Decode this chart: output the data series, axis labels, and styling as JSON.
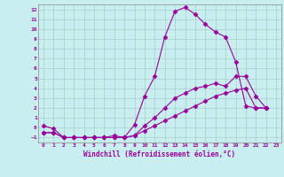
{
  "xlabel": "Windchill (Refroidissement éolien,°C)",
  "background_color": "#c8eef0",
  "line_color": "#990099",
  "grid_color": "#b0d8dc",
  "xlim": [
    -0.5,
    23.5
  ],
  "ylim": [
    -1.5,
    12.5
  ],
  "xticks": [
    0,
    1,
    2,
    3,
    4,
    5,
    6,
    7,
    8,
    9,
    10,
    11,
    12,
    13,
    14,
    15,
    16,
    17,
    18,
    19,
    20,
    21,
    22,
    23
  ],
  "yticks": [
    -1,
    0,
    1,
    2,
    3,
    4,
    5,
    6,
    7,
    8,
    9,
    10,
    11,
    12
  ],
  "line1_x": [
    0,
    1,
    2,
    3,
    4,
    5,
    6,
    7,
    8,
    9,
    10,
    11,
    12,
    13,
    14,
    15,
    16,
    17,
    18,
    19,
    20,
    21,
    22
  ],
  "line1_y": [
    0.2,
    -0.1,
    -1.0,
    -1.0,
    -1.0,
    -1.0,
    -1.0,
    -0.8,
    -1.0,
    0.3,
    3.2,
    5.2,
    9.2,
    11.8,
    12.2,
    11.5,
    10.5,
    9.7,
    9.2,
    6.7,
    2.2,
    2.0,
    2.0
  ],
  "line2_x": [
    0,
    1,
    2,
    3,
    4,
    5,
    6,
    7,
    8,
    9,
    10,
    11,
    12,
    13,
    14,
    15,
    16,
    17,
    18,
    19,
    20,
    21,
    22
  ],
  "line2_y": [
    -0.5,
    -0.5,
    -1.0,
    -1.0,
    -1.0,
    -1.0,
    -1.0,
    -1.0,
    -1.0,
    -0.8,
    0.2,
    1.0,
    2.0,
    3.0,
    3.5,
    4.0,
    4.2,
    4.5,
    4.2,
    5.2,
    5.2,
    3.2,
    2.0
  ],
  "line3_x": [
    0,
    1,
    2,
    3,
    4,
    5,
    6,
    7,
    8,
    9,
    10,
    11,
    12,
    13,
    14,
    15,
    16,
    17,
    18,
    19,
    20,
    21,
    22
  ],
  "line3_y": [
    -0.5,
    -0.5,
    -1.0,
    -1.0,
    -1.0,
    -1.0,
    -1.0,
    -1.0,
    -1.0,
    -0.8,
    -0.3,
    0.2,
    0.7,
    1.2,
    1.7,
    2.2,
    2.7,
    3.2,
    3.5,
    3.8,
    4.0,
    2.0,
    2.0
  ]
}
